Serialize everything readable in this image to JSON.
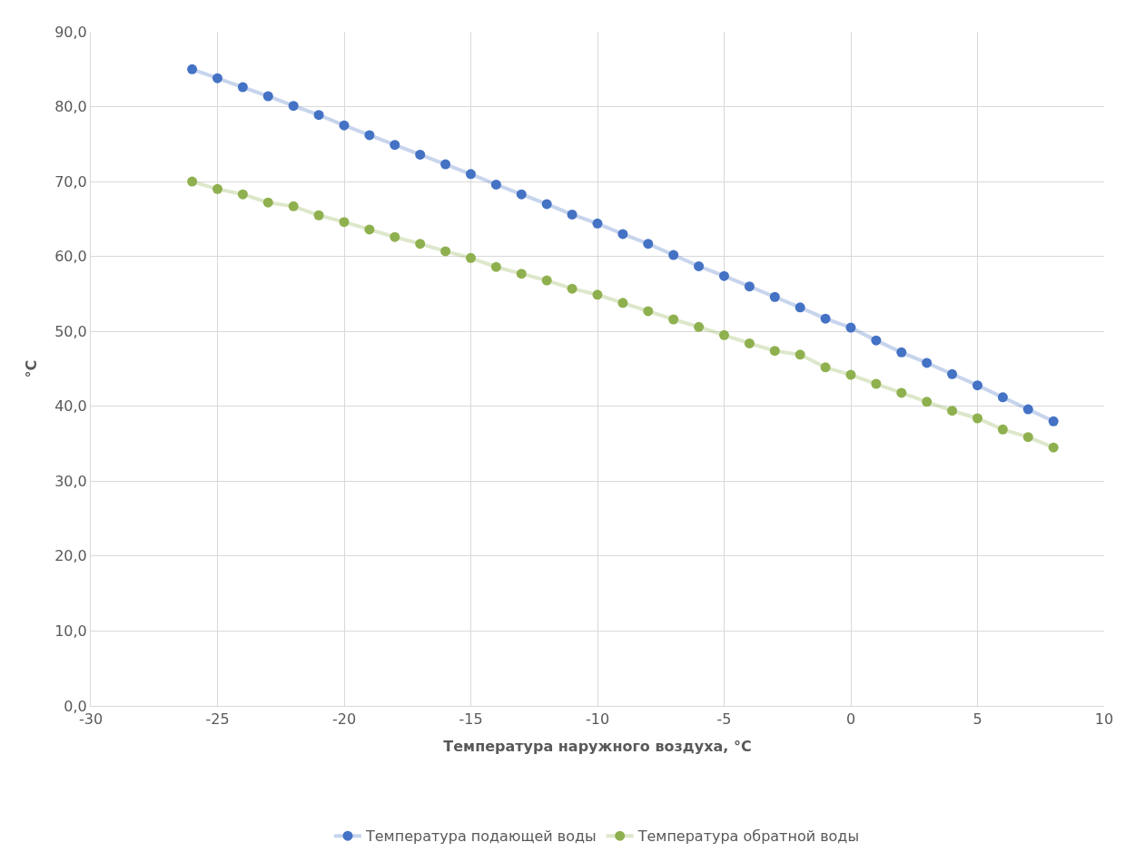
{
  "chart_data": {
    "type": "line",
    "xlabel": "Температура наружного воздуха, °С",
    "ylabel": "°С",
    "x": [
      -26,
      -25,
      -24,
      -23,
      -22,
      -21,
      -20,
      -19,
      -18,
      -17,
      -16,
      -15,
      -14,
      -13,
      -12,
      -11,
      -10,
      -9,
      -8,
      -7,
      -6,
      -5,
      -4,
      -3,
      -2,
      -1,
      0,
      1,
      2,
      3,
      4,
      5,
      6,
      7,
      8
    ],
    "series": [
      {
        "name": "Температура подающей воды",
        "color": "#4472c4",
        "values": [
          85.0,
          83.8,
          82.6,
          81.4,
          80.1,
          78.9,
          77.5,
          76.2,
          74.9,
          73.6,
          72.3,
          71.0,
          69.6,
          68.3,
          67.0,
          65.6,
          64.4,
          63.0,
          61.7,
          60.2,
          58.7,
          57.4,
          56.0,
          54.6,
          53.2,
          51.7,
          50.5,
          48.8,
          47.2,
          45.8,
          44.3,
          42.8,
          41.2,
          39.6,
          38.0
        ]
      },
      {
        "name": "Температура обратной воды",
        "color": "#8fb04f",
        "values": [
          70.0,
          69.0,
          68.3,
          67.2,
          66.7,
          65.5,
          64.6,
          63.6,
          62.6,
          61.7,
          60.7,
          59.8,
          58.6,
          57.7,
          56.8,
          55.7,
          54.9,
          53.8,
          52.7,
          51.6,
          50.6,
          49.5,
          48.4,
          47.4,
          46.9,
          45.2,
          44.2,
          43.0,
          41.8,
          40.6,
          39.4,
          38.4,
          36.9,
          35.9,
          34.5
        ]
      }
    ],
    "xlim": [
      -30,
      10
    ],
    "xticks": [
      -30,
      -25,
      -20,
      -15,
      -10,
      -5,
      0,
      5,
      10
    ],
    "ylim": [
      0,
      90
    ],
    "yticks": [
      {
        "value": 0,
        "label": "0,0"
      },
      {
        "value": 10,
        "label": "10,0"
      },
      {
        "value": 20,
        "label": "20,0"
      },
      {
        "value": 30,
        "label": "30,0"
      },
      {
        "value": 40,
        "label": "40,0"
      },
      {
        "value": 50,
        "label": "50,0"
      },
      {
        "value": 60,
        "label": "60,0"
      },
      {
        "value": 70,
        "label": "70,0"
      },
      {
        "value": 80,
        "label": "80,0"
      },
      {
        "value": 90,
        "label": "90,0"
      }
    ],
    "grid": true,
    "legend": "bottom",
    "marker": "circle",
    "line_style": "solid"
  }
}
